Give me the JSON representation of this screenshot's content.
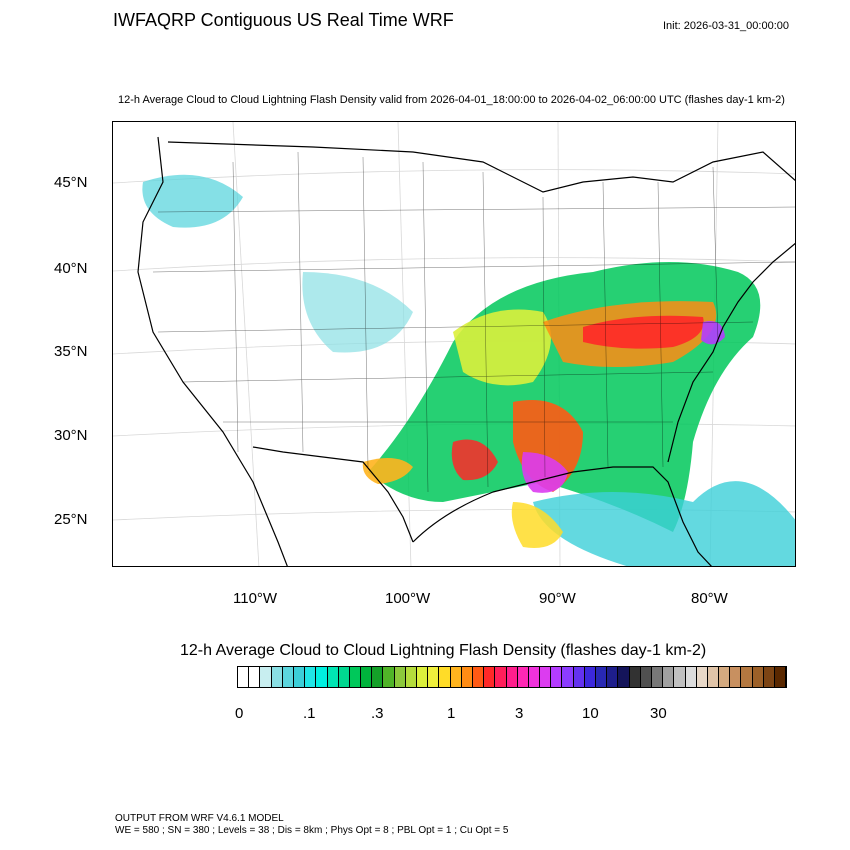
{
  "title": "IWFAQRP Contiguous US Real Time WRF",
  "init": "Init: 2026-03-31_00:00:00",
  "subtitle": "12-h Average Cloud to Cloud Lightning Flash Density valid from 2026-04-01_18:00:00 to 2026-04-02_06:00:00 UTC   (flashes day-1 km-2)",
  "lat_labels": [
    "45°N",
    "40°N",
    "35°N",
    "30°N",
    "25°N"
  ],
  "lon_labels": [
    "110°W",
    "100°W",
    "90°W",
    "80°W"
  ],
  "colorbar": {
    "title": "12-h Average Cloud to Cloud Lightning Flash Density  (flashes day-1 km-2)",
    "tick_labels": [
      "0",
      ".1",
      ".3",
      "1",
      "3",
      "10",
      "30"
    ],
    "colors": [
      "#ffffff",
      "#ffffff",
      "#c8eef0",
      "#8adfe4",
      "#5cd6de",
      "#3ccfd8",
      "#20e6e6",
      "#00f0e0",
      "#00e6b4",
      "#00d890",
      "#00c85a",
      "#00b43c",
      "#14a028",
      "#50b428",
      "#8cc83c",
      "#b4dc3c",
      "#dcf03c",
      "#f0f03c",
      "#ffdc28",
      "#ffb41e",
      "#ff8c14",
      "#ff5a14",
      "#ff2828",
      "#ff1e5a",
      "#ff1e8c",
      "#ff28b4",
      "#f032dc",
      "#dc3cf0",
      "#b43cff",
      "#8c3cff",
      "#6432f0",
      "#3c28dc",
      "#2828b4",
      "#1e1e8c",
      "#14145a",
      "#323232",
      "#505050",
      "#787878",
      "#a0a0a0",
      "#c0c0c0",
      "#dcdcdc",
      "#e8d8c8",
      "#e0c4a8",
      "#d4aa80",
      "#c89060",
      "#b47840",
      "#9c6028",
      "#7c4414",
      "#5a2800"
    ]
  },
  "footer": {
    "line1": "OUTPUT FROM WRF V4.6.1 MODEL",
    "line2": "WE = 580 ; SN = 380 ; Levels = 38 ; Dis = 8km ; Phys Opt = 8 ; PBL Opt = 1 ; Cu Opt = 5"
  }
}
